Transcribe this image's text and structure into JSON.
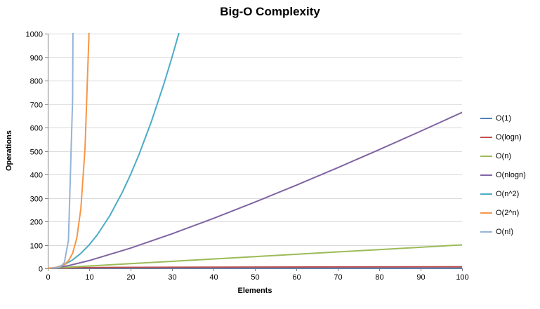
{
  "chart_data": {
    "type": "line",
    "title": "Big-O Complexity",
    "xlabel": "Elements",
    "ylabel": "Operations",
    "xlim": [
      0,
      100
    ],
    "ylim": [
      0,
      1000
    ],
    "x_ticks": [
      0,
      10,
      20,
      30,
      40,
      50,
      60,
      70,
      80,
      90,
      100
    ],
    "y_ticks": [
      0,
      100,
      200,
      300,
      400,
      500,
      600,
      700,
      800,
      900,
      1000
    ],
    "grid": "horizontal",
    "legend_position": "right",
    "colors": {
      "axis": "#808080",
      "gridline": "#d9d9d9",
      "background": "#ffffff"
    },
    "series": [
      {
        "name": "O(1)",
        "color": "#4F81BD",
        "points": [
          [
            0,
            1
          ],
          [
            100,
            1
          ]
        ]
      },
      {
        "name": "O(logn)",
        "color": "#C0504D",
        "points": [
          [
            1,
            0
          ],
          [
            2,
            1
          ],
          [
            4,
            2
          ],
          [
            8,
            3
          ],
          [
            16,
            4
          ],
          [
            32,
            5
          ],
          [
            64,
            6
          ],
          [
            100,
            6.64
          ]
        ]
      },
      {
        "name": "O(n)",
        "color": "#9BBB59",
        "points": [
          [
            0,
            0
          ],
          [
            10,
            10
          ],
          [
            20,
            20
          ],
          [
            30,
            30
          ],
          [
            40,
            40
          ],
          [
            50,
            50
          ],
          [
            60,
            60
          ],
          [
            70,
            70
          ],
          [
            80,
            80
          ],
          [
            90,
            90
          ],
          [
            100,
            100
          ]
        ]
      },
      {
        "name": "O(nlogn)",
        "color": "#8064A2",
        "points": [
          [
            1,
            0
          ],
          [
            5,
            11.6
          ],
          [
            10,
            33.2
          ],
          [
            20,
            86.4
          ],
          [
            30,
            147.2
          ],
          [
            40,
            212.9
          ],
          [
            50,
            282.2
          ],
          [
            60,
            354.4
          ],
          [
            70,
            429.0
          ],
          [
            80,
            505.8
          ],
          [
            90,
            584.3
          ],
          [
            100,
            664.4
          ]
        ]
      },
      {
        "name": "O(n^2)",
        "color": "#4BACC6",
        "points": [
          [
            0,
            0
          ],
          [
            2,
            4
          ],
          [
            4,
            16
          ],
          [
            6,
            36
          ],
          [
            8,
            64
          ],
          [
            10,
            100
          ],
          [
            12,
            144
          ],
          [
            15,
            225
          ],
          [
            18,
            324
          ],
          [
            20,
            400
          ],
          [
            22,
            484
          ],
          [
            25,
            625
          ],
          [
            28,
            784
          ],
          [
            30,
            900
          ],
          [
            32,
            1024
          ]
        ]
      },
      {
        "name": "O(2^n)",
        "color": "#F79646",
        "points": [
          [
            0,
            1
          ],
          [
            1,
            2
          ],
          [
            2,
            4
          ],
          [
            3,
            8
          ],
          [
            4,
            16
          ],
          [
            5,
            32
          ],
          [
            6,
            64
          ],
          [
            7,
            128
          ],
          [
            8,
            256
          ],
          [
            9,
            512
          ],
          [
            10,
            1024
          ]
        ]
      },
      {
        "name": "O(n!)",
        "color": "#95B3D7",
        "points": [
          [
            1,
            1
          ],
          [
            2,
            2
          ],
          [
            3,
            6
          ],
          [
            4,
            24
          ],
          [
            5,
            120
          ],
          [
            6,
            720
          ],
          [
            6.1,
            1080
          ]
        ]
      }
    ]
  }
}
